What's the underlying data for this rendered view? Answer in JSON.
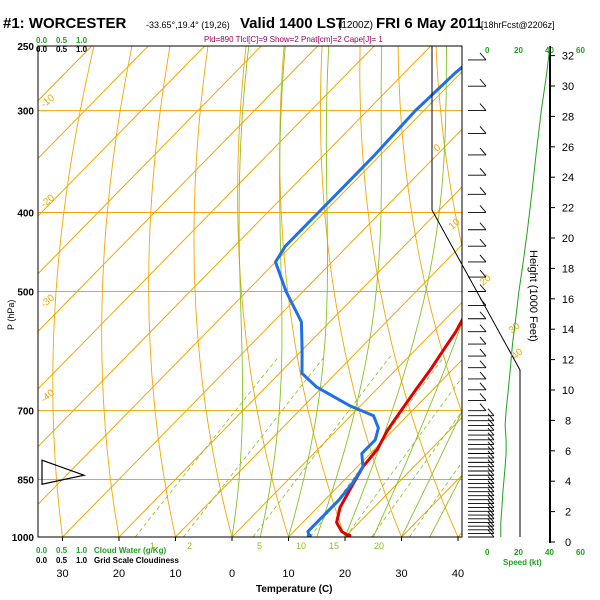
{
  "header": {
    "station": "#1: WORCESTER",
    "coords": "-33.65°,19.4° (19,26)",
    "valid": "Valid 1400 LST",
    "utc": "(1200Z)",
    "date": "FRI 6 May 2011",
    "forecast": "[18hrFcst@2206z]",
    "indices": "Pld=890 Tlcl[C]=9 Show=2 Pnat[cm]=2 Cape[J]= 1"
  },
  "mixing_legend_top": [
    "0.0",
    "0.5",
    "1.0"
  ],
  "mixing_legend_top2": [
    "0.0",
    "0.5",
    "1.0"
  ],
  "bottom_legend": {
    "line1": [
      "0.0",
      "0.5",
      "1.0"
    ],
    "line1_label": "Cloud Water (g/Kg)",
    "line2": [
      "0.0",
      "0.5",
      "1.0"
    ],
    "line2_label": "Grid Scale Cloudiness"
  },
  "speed_axis": {
    "ticks_top": [
      "0",
      "20",
      "40",
      "60"
    ],
    "ticks_bottom": [
      "0",
      "20",
      "40",
      "60"
    ],
    "label": "Speed (kt)"
  },
  "colors": {
    "temperature": "#e00000",
    "dewpoint": "#1e6fe8",
    "isotherm": "#f0a800",
    "dry_adiabat": "#f0a800",
    "moist_adiabat": "#88c020",
    "mixing_ratio": "#88c020",
    "wind_speed": "#20a020",
    "legend_green": "#20a020",
    "indices_purple": "#a00060"
  },
  "chart_data": {
    "type": "line",
    "xlabel": "Temperature (C)",
    "ylabel": "P (hPa)",
    "y2label": "Height (1000 Feet)",
    "x_tick_labels": [
      "30",
      "20",
      "10",
      "0",
      "10",
      "20",
      "30",
      "40"
    ],
    "x_ticks": [
      -30,
      -20,
      -10,
      0,
      10,
      20,
      30,
      40
    ],
    "y_ticks": [
      250,
      300,
      400,
      500,
      700,
      850,
      1000
    ],
    "y_tick_labels": [
      "250",
      "300",
      "400",
      "500",
      "700",
      "850",
      "1000"
    ],
    "height_ticks": [
      0,
      2,
      4,
      6,
      8,
      10,
      12,
      14,
      16,
      18,
      20,
      22,
      24,
      26,
      28,
      30,
      32
    ],
    "xlim": [
      -35,
      45
    ],
    "ylim": [
      1000,
      250
    ],
    "series": [
      {
        "key": "temperature",
        "points": [
          [
            20.5,
            997
          ],
          [
            18.5,
            985
          ],
          [
            16,
            960
          ],
          [
            14,
            920
          ],
          [
            12.5,
            870
          ],
          [
            11,
            820
          ],
          [
            10.5,
            780
          ],
          [
            9,
            740
          ],
          [
            8,
            700
          ],
          [
            7,
            660
          ],
          [
            6,
            620
          ],
          [
            5,
            590
          ],
          [
            4,
            560
          ],
          [
            2.5,
            530
          ],
          [
            1,
            500
          ],
          [
            -2,
            470
          ],
          [
            -4.5,
            440
          ],
          [
            -8,
            400
          ],
          [
            -12,
            360
          ],
          [
            -15,
            330
          ],
          [
            -16,
            300
          ],
          [
            -15.5,
            280
          ],
          [
            -13,
            262
          ],
          [
            -11.5,
            250
          ]
        ]
      },
      {
        "key": "dewpoint",
        "points": [
          [
            13.5,
            997
          ],
          [
            12.5,
            985
          ],
          [
            12.5,
            940
          ],
          [
            12.5,
            900
          ],
          [
            12,
            860
          ],
          [
            11,
            820
          ],
          [
            8.5,
            790
          ],
          [
            8.5,
            760
          ],
          [
            7,
            735
          ],
          [
            4,
            710
          ],
          [
            -2,
            690
          ],
          [
            -11,
            655
          ],
          [
            -16,
            630
          ],
          [
            -20,
            590
          ],
          [
            -25,
            545
          ],
          [
            -33,
            500
          ],
          [
            -40,
            460
          ],
          [
            -41,
            440
          ],
          [
            -41,
            400
          ],
          [
            -41,
            370
          ],
          [
            -41,
            340
          ],
          [
            -41.5,
            300
          ],
          [
            -41,
            270
          ],
          [
            -40,
            250
          ]
        ]
      }
    ],
    "isotherm_labels": [
      "0",
      "10",
      "20",
      "30",
      "40",
      "-10",
      "-20",
      "-30",
      "-40"
    ],
    "mixing_ratio_labels": [
      "1",
      "2",
      "5",
      "10",
      "15",
      "20"
    ],
    "wind_speed_profile": [
      [
        12,
        1000
      ],
      [
        12,
        960
      ],
      [
        13,
        920
      ],
      [
        14,
        880
      ],
      [
        15,
        850
      ],
      [
        16,
        820
      ],
      [
        17,
        790
      ],
      [
        17,
        760
      ],
      [
        16,
        730
      ],
      [
        17,
        700
      ],
      [
        19,
        660
      ],
      [
        21,
        620
      ],
      [
        23,
        580
      ],
      [
        26,
        540
      ],
      [
        29,
        500
      ],
      [
        33,
        460
      ],
      [
        37,
        420
      ],
      [
        41,
        380
      ],
      [
        45,
        340
      ],
      [
        50,
        300
      ],
      [
        55,
        270
      ],
      [
        58,
        250
      ]
    ],
    "barb_levels": [
      1000,
      990,
      980,
      970,
      960,
      950,
      940,
      930,
      920,
      910,
      900,
      890,
      880,
      870,
      860,
      850,
      840,
      830,
      820,
      810,
      800,
      790,
      780,
      770,
      760,
      750,
      740,
      730,
      720,
      710,
      700,
      680,
      660,
      640,
      620,
      600,
      580,
      560,
      540,
      520,
      500,
      480,
      460,
      440,
      420,
      400,
      380,
      360,
      340,
      320,
      300,
      280,
      260
    ],
    "surface_wind_arrow": {
      "level": 840
    }
  }
}
